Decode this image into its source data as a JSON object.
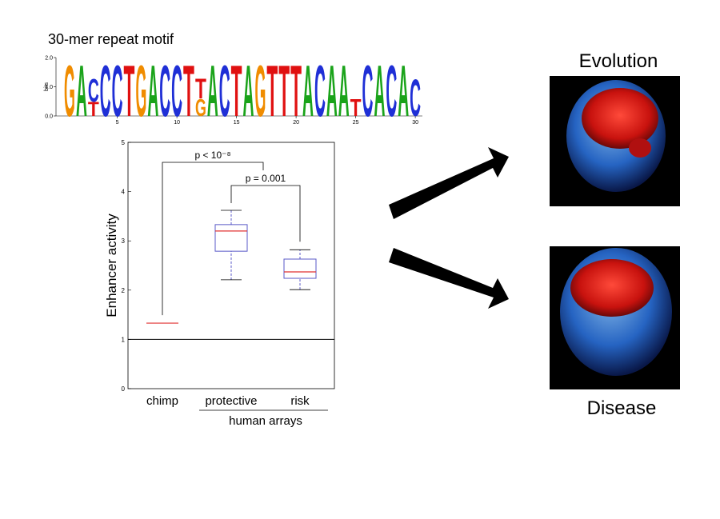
{
  "logo": {
    "title": "30-mer repeat motif",
    "ylabel": "bits",
    "ylim": [
      0,
      2
    ],
    "yticks": [
      {
        "value": 0,
        "label": "0.0"
      },
      {
        "value": 1,
        "label": "1.0"
      },
      {
        "value": 2,
        "label": "2.0"
      }
    ],
    "xlim": [
      1,
      30
    ],
    "xticks": [
      5,
      10,
      15,
      20,
      25,
      30
    ],
    "colors": {
      "A": "#1aa31a",
      "C": "#1f2fd6",
      "G": "#f08c00",
      "T": "#e01010"
    },
    "stacks": [
      [
        [
          "G",
          1.8
        ]
      ],
      [
        [
          "A",
          1.8
        ]
      ],
      [
        [
          "T",
          0.5
        ],
        [
          "C",
          0.8
        ]
      ],
      [
        [
          "C",
          1.8
        ]
      ],
      [
        [
          "C",
          1.8
        ]
      ],
      [
        [
          "T",
          1.8
        ]
      ],
      [
        [
          "G",
          1.8
        ]
      ],
      [
        [
          "A",
          1.8
        ]
      ],
      [
        [
          "C",
          1.8
        ]
      ],
      [
        [
          "C",
          1.8
        ]
      ],
      [
        [
          "T",
          1.8
        ]
      ],
      [
        [
          "G",
          0.6
        ],
        [
          "T",
          0.7
        ]
      ],
      [
        [
          "A",
          1.8
        ]
      ],
      [
        [
          "C",
          1.8
        ]
      ],
      [
        [
          "T",
          1.8
        ]
      ],
      [
        [
          "A",
          1.8
        ]
      ],
      [
        [
          "G",
          1.8
        ]
      ],
      [
        [
          "T",
          1.8
        ]
      ],
      [
        [
          "T",
          1.8
        ]
      ],
      [
        [
          "T",
          1.8
        ]
      ],
      [
        [
          "A",
          1.8
        ]
      ],
      [
        [
          "C",
          1.8
        ]
      ],
      [
        [
          "A",
          1.8
        ]
      ],
      [
        [
          "A",
          1.8
        ]
      ],
      [
        [
          "T",
          0.6
        ]
      ],
      [
        [
          "C",
          1.8
        ]
      ],
      [
        [
          "A",
          1.8
        ]
      ],
      [
        [
          "C",
          1.8
        ]
      ],
      [
        [
          "A",
          1.8
        ]
      ],
      [
        [
          "C",
          1.3
        ]
      ]
    ]
  },
  "chart_data": {
    "type": "box",
    "ylabel": "Enhancer activity",
    "categories": [
      "chimp",
      "protective",
      "risk"
    ],
    "group_label": "human arrays",
    "stats": [
      [
        1.33,
        1.33,
        1.33,
        1.33,
        1.33
      ],
      [
        2.21,
        2.79,
        3.2,
        3.33,
        3.62
      ],
      [
        2.01,
        2.24,
        2.37,
        2.63,
        2.82
      ]
    ],
    "ylim": [
      0,
      5
    ],
    "yticks": [
      0,
      1,
      2,
      3,
      4,
      5
    ],
    "reference_line": 1,
    "box_color": "#5a5ac8",
    "median_color": "#e03030",
    "annotations": [
      "p < 10⁻⁸",
      "p = 0.001"
    ]
  },
  "labels": {
    "top": "Evolution",
    "bottom": "Disease"
  }
}
